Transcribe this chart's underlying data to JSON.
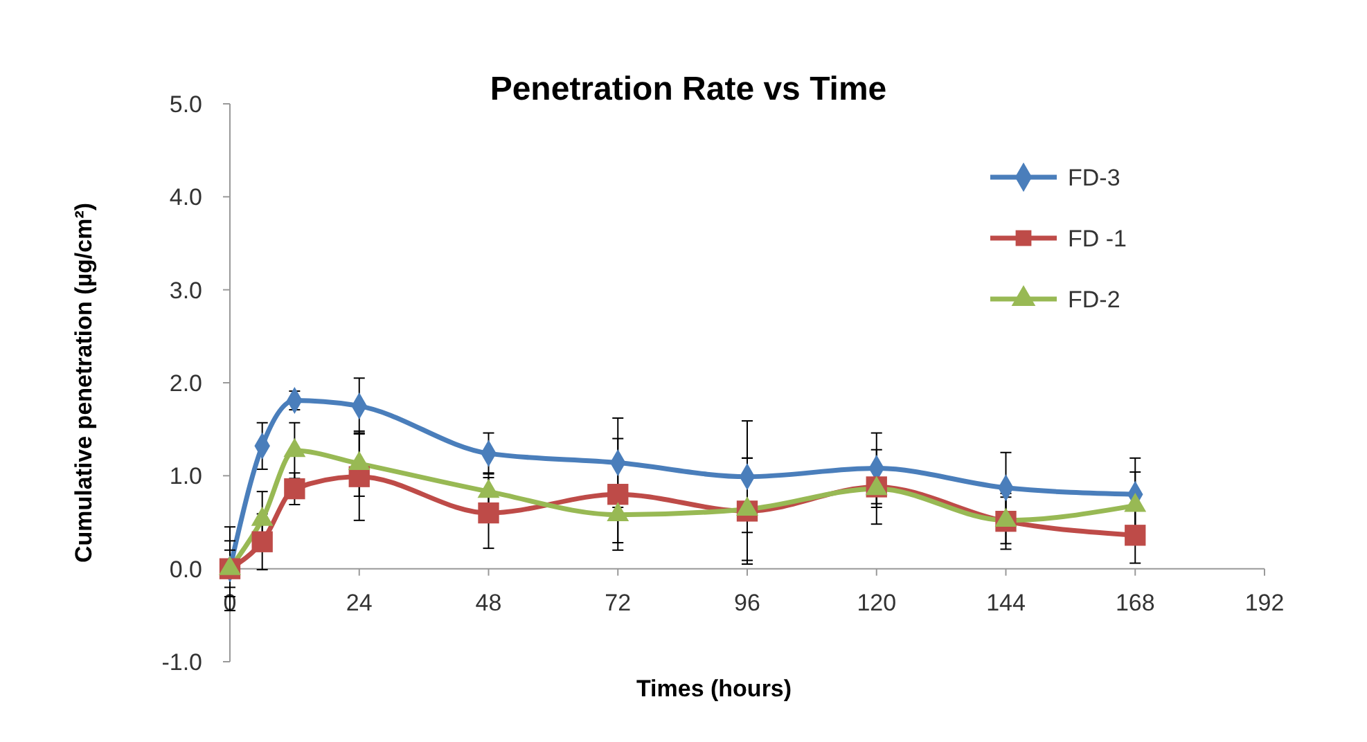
{
  "chart_data": {
    "type": "line",
    "title": "Penetration Rate vs Time",
    "xlabel": "Times (hours)",
    "ylabel": "Cumulative penetration (µg/cm²)",
    "x": [
      0,
      6,
      12,
      24,
      48,
      72,
      96,
      120,
      144,
      168
    ],
    "xlim": [
      0,
      192
    ],
    "xticks": [
      0,
      24,
      48,
      72,
      96,
      120,
      144,
      168,
      192
    ],
    "ylim": [
      -1,
      5
    ],
    "yticks": [
      {
        "value": -1,
        "label": "-1.0"
      },
      {
        "value": 0,
        "label": "0.0"
      },
      {
        "value": 1,
        "label": "1.0"
      },
      {
        "value": 2,
        "label": "2.0"
      },
      {
        "value": 3,
        "label": "3.0"
      },
      {
        "value": 4,
        "label": "4.0"
      },
      {
        "value": 5,
        "label": "5.0"
      }
    ],
    "grid": false,
    "legend": "right",
    "line_style": "solid",
    "series": [
      {
        "name": "FD-3",
        "color": "#4a7ebb",
        "marker": "diamond",
        "values": [
          0,
          1.32,
          1.81,
          1.75,
          1.24,
          1.14,
          0.99,
          1.08,
          0.87,
          0.8
        ],
        "errors": [
          0.45,
          0.25,
          0.1,
          0.3,
          0.22,
          0.48,
          0.6,
          0.38,
          0.38,
          0.39
        ]
      },
      {
        "name": "FD -1",
        "color": "#be4b48",
        "marker": "square",
        "values": [
          0,
          0.29,
          0.86,
          0.99,
          0.6,
          0.8,
          0.62,
          0.88,
          0.51,
          0.36
        ],
        "errors": [
          0.3,
          0.3,
          0.17,
          0.47,
          0.38,
          0.6,
          0.57,
          0.4,
          0.3,
          0.3
        ]
      },
      {
        "name": "FD-2",
        "color": "#98b954",
        "marker": "triangle",
        "values": [
          0,
          0.53,
          1.27,
          1.13,
          0.83,
          0.58,
          0.64,
          0.86,
          0.52,
          0.68
        ],
        "errors": [
          0.2,
          0.3,
          0.3,
          0.35,
          0.2,
          0.3,
          0.55,
          0.2,
          0.25,
          0.36
        ]
      }
    ]
  }
}
